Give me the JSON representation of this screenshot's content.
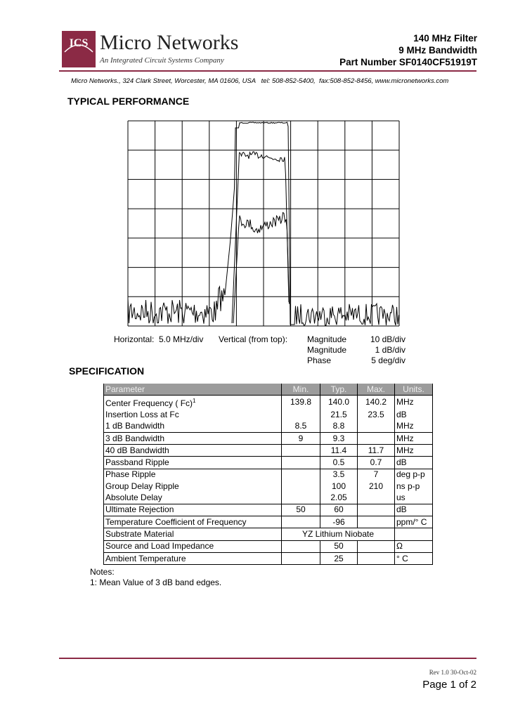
{
  "header": {
    "logo_text": "ICS",
    "company": "Micro Networks",
    "tagline": "An Integrated Circuit Systems Company",
    "title_lines": [
      "140 MHz Filter",
      "9 MHz Bandwidth",
      "Part Number SF0140CF51919T"
    ],
    "address": "Micro Networks., 324 Clark Street, Worcester, MA 01606, USA   tel: 508-852-5400,  fax:508-852-8456, www.micronetworks.com"
  },
  "performance": {
    "heading": "TYPICAL PERFORMANCE",
    "horizontal_label": "Horizontal:",
    "horizontal_scale": "5.0 MHz/div",
    "vertical_label": "Vertical (from top):",
    "vertical_rows": [
      [
        "Magnitude",
        "10 dB/div"
      ],
      [
        "Magnitude",
        "1 dB/div"
      ],
      [
        "Phase",
        "5 deg/div"
      ]
    ]
  },
  "specification": {
    "heading": "SPECIFICATION",
    "columns": [
      "Parameter",
      "Min.",
      "Typ.",
      "Max.",
      "Units."
    ],
    "rows": [
      {
        "parameter": "Center Frequency ( Fc)",
        "note_ref": "1",
        "min": "139.8",
        "typ": "140.0",
        "max": "140.2",
        "units": "MHz"
      },
      {
        "parameter": "Insertion Loss at Fc",
        "typ": "21.5",
        "max": "23.5",
        "units": "dB"
      },
      {
        "parameter": "1 dB Bandwidth",
        "min": "8.5",
        "typ": "8.8",
        "units": "MHz"
      },
      {
        "parameter": "3 dB Bandwidth",
        "min": "9",
        "typ": "9.3",
        "units": "MHz"
      },
      {
        "parameter": "40 dB Bandwidth",
        "typ": "11.4",
        "max": "11.7",
        "units": "MHz"
      },
      {
        "parameter": "Passband Ripple",
        "typ": "0.5",
        "max": "0.7",
        "units": "dB"
      },
      {
        "parameter": "Phase Ripple",
        "typ": "3.5",
        "max": "7",
        "units": "deg p-p"
      },
      {
        "parameter": "Group Delay Ripple",
        "typ": "100",
        "max": "210",
        "units": "ns p-p"
      },
      {
        "parameter": "Absolute Delay",
        "typ": "2.05",
        "units": "us"
      },
      {
        "parameter": "Ultimate Rejection",
        "min": "50",
        "typ": "60",
        "units": "dB"
      },
      {
        "parameter": "Temperature Coefficient of Frequency",
        "typ": "-96",
        "units": "ppm/° C"
      },
      {
        "parameter": "Substrate Material",
        "span": "YZ Lithium Niobate"
      },
      {
        "parameter": "Source and Load Impedance",
        "typ": "50",
        "units": "Ω"
      },
      {
        "parameter": "Ambient Temperature",
        "typ": "25",
        "units": "° C"
      }
    ]
  },
  "notes": {
    "heading": "Notes:",
    "items": [
      "1: Mean Value of 3 dB band edges."
    ]
  },
  "footer": {
    "revision": "Rev 1.0 30-Oct-02",
    "page": "Page 1 of 2"
  }
}
